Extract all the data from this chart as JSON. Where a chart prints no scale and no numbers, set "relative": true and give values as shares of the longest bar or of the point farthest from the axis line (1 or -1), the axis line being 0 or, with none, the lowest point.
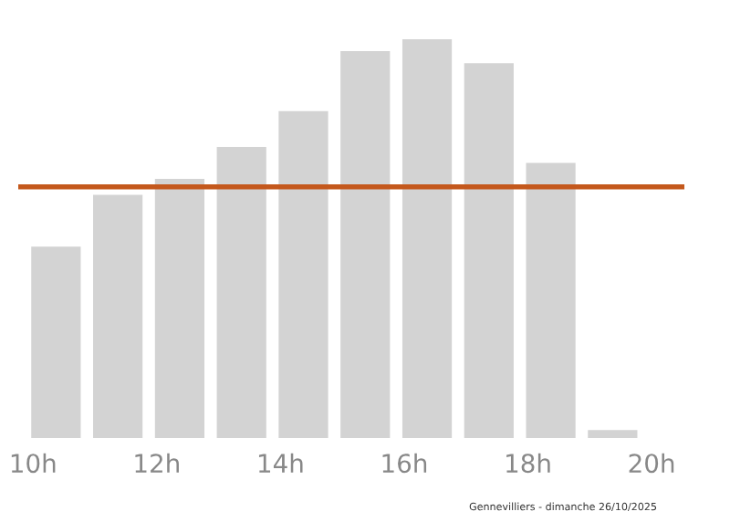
{
  "chart_data": {
    "type": "bar",
    "relative": true,
    "x": [
      10.37,
      11.37,
      12.37,
      13.37,
      14.37,
      15.37,
      16.37,
      17.37,
      18.37,
      19.37
    ],
    "values": [
      0.48,
      0.61,
      0.65,
      0.73,
      0.82,
      0.97,
      1.0,
      0.94,
      0.69,
      0.02
    ],
    "color": "#d3d3d3",
    "xlim": [
      9.76,
      20.53
    ],
    "xticks": [
      {
        "value": 10,
        "label": "10h"
      },
      {
        "value": 12,
        "label": "12h"
      },
      {
        "value": 14,
        "label": "14h"
      },
      {
        "value": 16,
        "label": "16h"
      },
      {
        "value": 18,
        "label": "18h"
      },
      {
        "value": 20,
        "label": "20h"
      }
    ],
    "ref_lines": [
      {
        "axis": "y",
        "value": 0.63,
        "color": "#c4581c"
      }
    ],
    "annotations": [
      "Gennevilliers - dimanche 26/10/2025"
    ],
    "grid": false
  }
}
